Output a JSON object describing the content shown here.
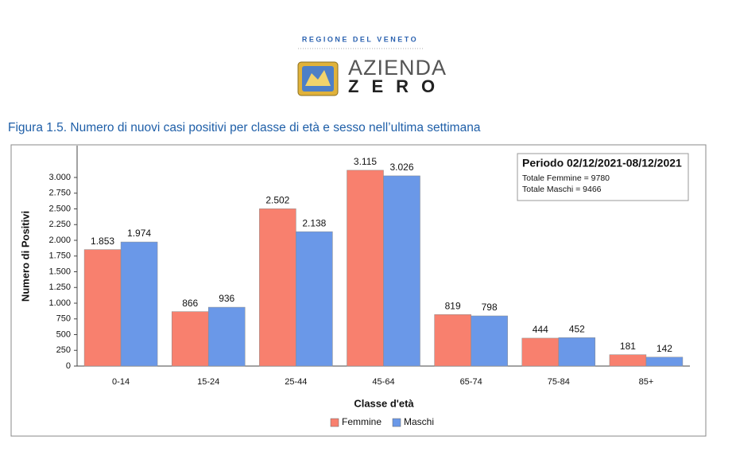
{
  "header": {
    "region": "REGIONE DEL VENETO",
    "name_top": "AZIENDA",
    "name_bottom": "ZERO"
  },
  "chart_data": {
    "type": "bar",
    "title": "Figura 1.5. Numero di nuovi casi positivi per classe di età e sesso nell’ultima settimana",
    "x_label": "Classe d'età",
    "y_label": "Numero di Positivi",
    "categories": [
      "0-14",
      "15-24",
      "25-44",
      "45-64",
      "65-74",
      "75-84",
      "85+"
    ],
    "series": [
      {
        "name": "Femmine",
        "color": "#f8806e",
        "values": [
          1853,
          866,
          2502,
          3115,
          819,
          444,
          181
        ],
        "value_labels": [
          "1.853",
          "866",
          "2.502",
          "3.115",
          "819",
          "444",
          "181"
        ]
      },
      {
        "name": "Maschi",
        "color": "#6a98e8",
        "values": [
          1974,
          936,
          2138,
          3026,
          798,
          452,
          142
        ],
        "value_labels": [
          "1.974",
          "936",
          "2.138",
          "3.026",
          "798",
          "452",
          "142"
        ]
      }
    ],
    "ylim": [
      0,
      3500
    ],
    "yticks": [
      0,
      250,
      500,
      750,
      {
        "value": 1000,
        "label": "1.000"
      },
      {
        "value": 1250,
        "label": "1.250"
      },
      {
        "value": 1500,
        "label": "1.500"
      },
      {
        "value": 1750,
        "label": "1.750"
      },
      {
        "value": 2000,
        "label": "2.000"
      },
      {
        "value": 2250,
        "label": "2.250"
      },
      {
        "value": 2500,
        "label": "2.500"
      },
      {
        "value": 2750,
        "label": "2.750"
      },
      {
        "value": 3000,
        "label": "3.000"
      }
    ],
    "grid": false,
    "legend": "bottom",
    "annotations": [
      "Periodo 02/12/2021-08/12/2021",
      "Totale Femmine = 9780",
      "Totale Maschi = 9466"
    ]
  }
}
